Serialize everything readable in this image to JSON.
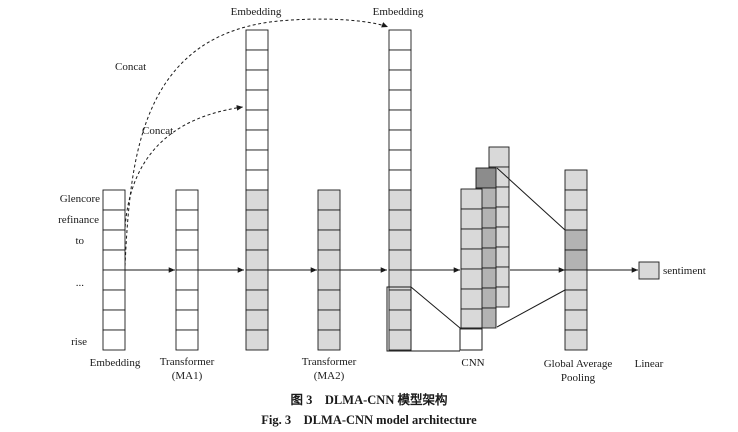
{
  "colors": {
    "white_cell": "#ffffff",
    "light_cell": "#d9d9d9",
    "mid_cell": "#b3b3b3",
    "dark_cell": "#8c8c8c",
    "stroke": "#1a1a1a"
  },
  "tokens": [
    "Glencore",
    "refinance",
    "to",
    "...",
    "rise"
  ],
  "labels": {
    "embedding_bottom": "Embedding",
    "transformer1": "Transformer",
    "transformer1_sub": "(MA1)",
    "transformer2": "Transformer",
    "transformer2_sub": "(MA2)",
    "embedding_top1": "Embedding",
    "embedding_top2": "Embedding",
    "concat1": "Concat",
    "concat2": "Concat",
    "cnn": "CNN",
    "gap1": "Global Average",
    "gap2": "Pooling",
    "linear": "Linear",
    "output": "sentiment"
  },
  "caption": {
    "cn": "图 3　DLMA-CNN 模型架构",
    "en": "Fig. 3　DLMA-CNN model architecture"
  }
}
